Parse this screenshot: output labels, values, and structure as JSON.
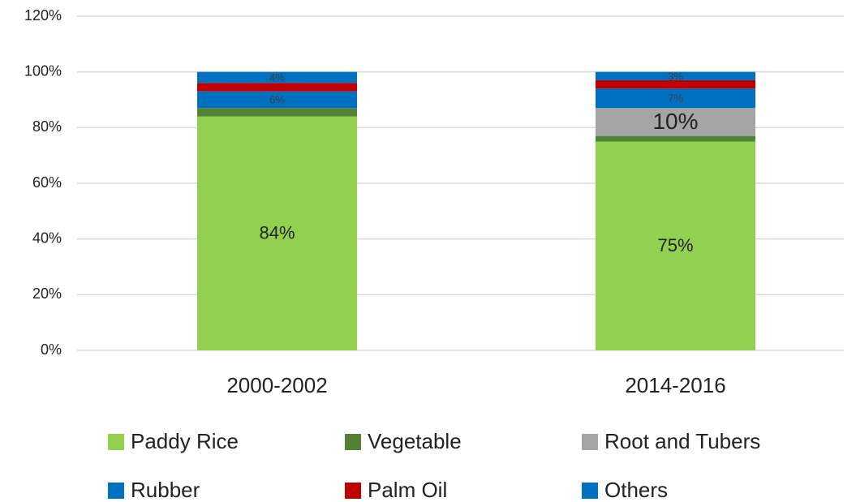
{
  "chart_data": {
    "type": "stacked_bar",
    "categories": [
      "2000-2002",
      "2014-2016"
    ],
    "series": [
      {
        "name": "Paddy Rice",
        "color": "#92d050",
        "values": [
          84,
          75
        ],
        "value_labels": [
          "84%",
          "75%"
        ]
      },
      {
        "name": "Vegetable",
        "color": "#548235",
        "values": [
          3,
          2
        ],
        "value_labels": [
          null,
          null
        ]
      },
      {
        "name": "Root and Tubers",
        "color": "#a5a5a5",
        "values": [
          0,
          10
        ],
        "value_labels": [
          null,
          "10%"
        ]
      },
      {
        "name": "Rubber",
        "color": "#0070c0",
        "values": [
          6,
          7
        ],
        "value_labels": [
          "6%",
          "7%"
        ]
      },
      {
        "name": "Palm Oil",
        "color": "#c00000",
        "values": [
          3,
          3
        ],
        "value_labels": [
          null,
          null
        ]
      },
      {
        "name": "Others",
        "color": "#0070c0",
        "values": [
          4,
          3
        ],
        "value_labels": [
          "4%",
          "3%"
        ]
      }
    ],
    "ylim": [
      0,
      120
    ],
    "yticks": [
      {
        "value": 0,
        "label": "0%"
      },
      {
        "value": 20,
        "label": "20%"
      },
      {
        "value": 40,
        "label": "40%"
      },
      {
        "value": 60,
        "label": "60%"
      },
      {
        "value": 80,
        "label": "80%"
      },
      {
        "value": 100,
        "label": "100%"
      },
      {
        "value": 120,
        "label": "120%"
      }
    ],
    "grid": true,
    "legend": "bottom"
  }
}
